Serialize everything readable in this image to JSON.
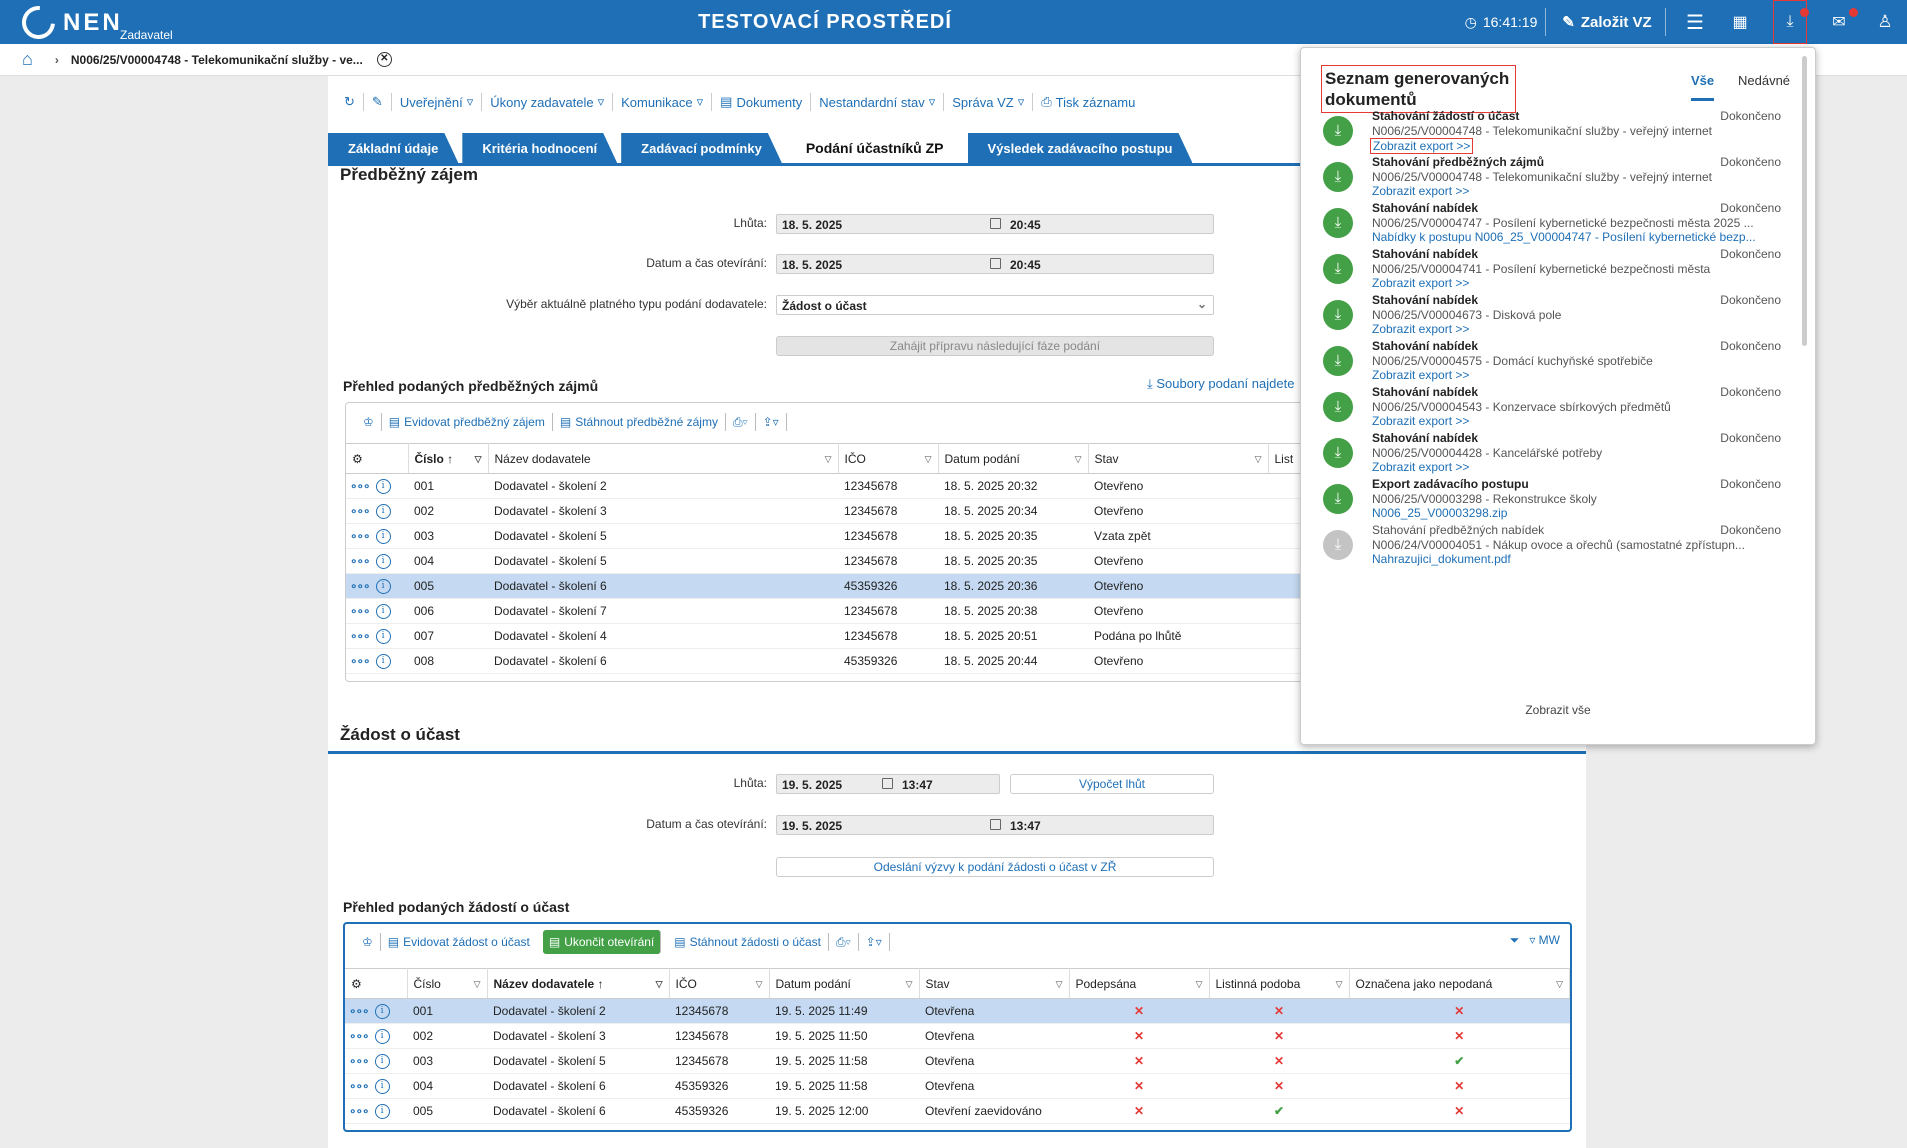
{
  "header": {
    "logo": "NEN",
    "logo_sub": "Zadavatel",
    "env_title": "TESTOVACÍ PROSTŘEDÍ",
    "time": "16:41:19",
    "create": "Založit VZ"
  },
  "breadcrumb": {
    "title": "N006/25/V00004748 - Telekomunikační služby - ve..."
  },
  "toolbar": [
    "Uveřejnění",
    "Úkony zadavatele",
    "Komunikace",
    "Dokumenty",
    "Nestandardní stav",
    "Správa VZ",
    "Tisk záznamu"
  ],
  "tabs": [
    "Základní údaje",
    "Kritéria hodnocení",
    "Zadávací podmínky",
    "Podání účastníků ZP",
    "Výsledek zadávacího postupu"
  ],
  "section1": {
    "title": "Předběžný zájem",
    "lhuta_label": "Lhůta:",
    "lhuta_date": "18. 5. 2025",
    "lhuta_time": "20:45",
    "open_label": "Datum a čas otevírání:",
    "open_date": "18. 5. 2025",
    "open_time": "20:45",
    "type_label": "Výběr aktuálně platného typu podání dodavatele:",
    "type_value": "Žádost o účast",
    "next_phase": "Zahájit přípravu následující fáze podání",
    "list_title": "Přehled podaných předběžných zájmů",
    "files_link": "Soubory podaní najdete",
    "tools": [
      "Evidovat předběžný zájem",
      "Stáhnout předběžné zájmy"
    ],
    "cols": [
      "Číslo",
      "Název dodavatele",
      "IČO",
      "Datum podání",
      "Stav",
      "List"
    ],
    "rows": [
      [
        "001",
        "Dodavatel - školení 2",
        "12345678",
        "18. 5. 2025 20:32",
        "Otevřeno"
      ],
      [
        "002",
        "Dodavatel - školení 3",
        "12345678",
        "18. 5. 2025 20:34",
        "Otevřeno"
      ],
      [
        "003",
        "Dodavatel - školení 5",
        "12345678",
        "18. 5. 2025 20:35",
        "Vzata zpět"
      ],
      [
        "004",
        "Dodavatel - školení 5",
        "12345678",
        "18. 5. 2025 20:35",
        "Otevřeno"
      ],
      [
        "005",
        "Dodavatel - školení 6",
        "45359326",
        "18. 5. 2025 20:36",
        "Otevřeno"
      ],
      [
        "006",
        "Dodavatel - školení 7",
        "12345678",
        "18. 5. 2025 20:38",
        "Otevřeno"
      ],
      [
        "007",
        "Dodavatel - školení 4",
        "12345678",
        "18. 5. 2025 20:51",
        "Podána po lhůtě"
      ],
      [
        "008",
        "Dodavatel - školení 6",
        "45359326",
        "18. 5. 2025 20:44",
        "Otevřeno"
      ]
    ]
  },
  "section2": {
    "title": "Žádost o účast",
    "lhuta_label": "Lhůta:",
    "lhuta_date": "19. 5. 2025",
    "lhuta_time": "13:47",
    "calc": "Výpočet lhůt",
    "open_label": "Datum a čas otevírání:",
    "open_date": "19. 5. 2025",
    "open_time": "13:47",
    "send": "Odeslání výzvy k podání žádosti o účast v ZŘ",
    "list_title": "Přehled podaných žádostí o účast",
    "tools": [
      "Evidovat žádost o účast",
      "Ukončit otevírání",
      "Stáhnout žádosti o účast"
    ],
    "mw": "MW",
    "cols": [
      "Číslo",
      "Název dodavatele",
      "IČO",
      "Datum podání",
      "Stav",
      "Podepsána",
      "Listinná podoba",
      "Označena jako nepodaná"
    ],
    "rows": [
      [
        "001",
        "Dodavatel - školení 2",
        "12345678",
        "19. 5. 2025 11:49",
        "Otevřena",
        "x",
        "x",
        "x"
      ],
      [
        "002",
        "Dodavatel - školení 3",
        "12345678",
        "19. 5. 2025 11:50",
        "Otevřena",
        "x",
        "x",
        "x"
      ],
      [
        "003",
        "Dodavatel - školení 5",
        "12345678",
        "19. 5. 2025 11:58",
        "Otevřena",
        "x",
        "x",
        "ok"
      ],
      [
        "004",
        "Dodavatel - školení 6",
        "45359326",
        "19. 5. 2025 11:58",
        "Otevřena",
        "x",
        "x",
        "x"
      ],
      [
        "005",
        "Dodavatel - školení 6",
        "45359326",
        "19. 5. 2025 12:00",
        "Otevření zaevidováno",
        "x",
        "ok",
        "x"
      ]
    ]
  },
  "panel": {
    "title": "Seznam generovaných dokumentů",
    "tab_all": "Vše",
    "tab_recent": "Nedávné",
    "show_all": "Zobrazit vše",
    "items": [
      {
        "t": "Stahování žádostí o účast",
        "s": "Dokončeno",
        "d": "N006/25/V00004748 - Telekomunikační služby - veřejný internet",
        "l": "Zobrazit export >>"
      },
      {
        "t": "Stahování předběžných zájmů",
        "s": "Dokončeno",
        "d": "N006/25/V00004748 - Telekomunikační služby - veřejný internet",
        "l": "Zobrazit export >>"
      },
      {
        "t": "Stahování nabídek",
        "s": "Dokončeno",
        "d": "N006/25/V00004747 - Posílení kybernetické bezpečnosti města 2025 ...",
        "l": "Nabídky k postupu N006_25_V00004747 - Posílení kybernetické bezp..."
      },
      {
        "t": "Stahování nabídek",
        "s": "Dokončeno",
        "d": "N006/25/V00004741 - Posílení kybernetické bezpečnosti města",
        "l": "Zobrazit export >>"
      },
      {
        "t": "Stahování nabídek",
        "s": "Dokončeno",
        "d": "N006/25/V00004673 - Disková pole",
        "l": "Zobrazit export >>"
      },
      {
        "t": "Stahování nabídek",
        "s": "Dokončeno",
        "d": "N006/25/V00004575 - Domácí kuchyňské spotřebiče",
        "l": "Zobrazit export >>"
      },
      {
        "t": "Stahování nabídek",
        "s": "Dokončeno",
        "d": "N006/25/V00004543 - Konzervace sbírkových předmětů",
        "l": "Zobrazit export >>"
      },
      {
        "t": "Stahování nabídek",
        "s": "Dokončeno",
        "d": "N006/25/V00004428 - Kancelářské potřeby",
        "l": "Zobrazit export >>"
      },
      {
        "t": "Export zadávacího postupu",
        "s": "Dokončeno",
        "d": "N006/25/V00003298 - Rekonstrukce školy",
        "l": "N006_25_V00003298.zip"
      },
      {
        "t": "Stahování předběžných nabídek",
        "s": "Dokončeno",
        "d": "N006/24/V00004051 - Nákup ovoce a ořechů (samostatné zpřístupn...",
        "l": "Nahrazujici_dokument.pdf"
      }
    ]
  }
}
